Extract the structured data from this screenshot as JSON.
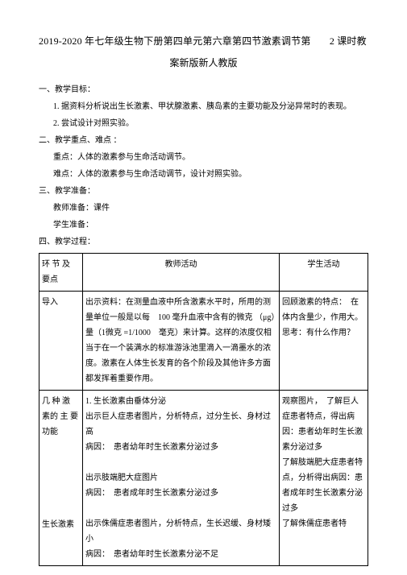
{
  "title": {
    "line1_left": "2019-2020 年七年级生物下册第四单元第六章第四节激素调节第",
    "line1_right": "2 课时教",
    "line2": "案新版新人教版"
  },
  "sections": {
    "s1_head": "一、教学目标：",
    "s1_item1": "1. 据资料分析说出生长激素、甲状腺激素、胰岛素的主要功能及分泌异常时的表现。",
    "s1_item2": "2. 尝试设计对照实验。",
    "s2_head": "二、教学重点、难点 ：",
    "s2_item1": "重点：人体的激素参与生命活动调节。",
    "s2_item2": "难点：人体的激素参与生命活动调节，设计对照实验。",
    "s3_head": "三、教学准备：",
    "s3_item1": "教师准备：课件",
    "s3_item2": "学生准备：",
    "s4_head": "四、教学过程："
  },
  "table": {
    "header": {
      "c1": "环 节 及 要点",
      "c2": "教师活动",
      "c3": "学生活动"
    },
    "row1": {
      "c1": "导入",
      "c2": "出示资料：在测量血液中所含激素水平时，所用的测量单位一般是以每　100 毫升血液中含有的微克 （μg）量（1微克 =1/1000　毫克）来计算。这样的浓度仅相当于在一个装满水的标准游泳池里滴入一滴墨水的浓度。激素在人体生长发育的各个阶段及其他许多方面都发挥着重要作用。",
      "c3": "回顾激素的特点：　在体内含量少，作用大。\n思考：有什么作用？"
    },
    "row2": {
      "c1a": "几 种 激 素的 主 要 功能",
      "c1b": "生长激素",
      "c2": "1. 生长激素由垂体分泌\n出示巨人症患者图片，分析特点，过分生长、身材过高\n病因：　患者幼年时生长激素分泌过多\n\n出示肢端肥大症图片\n病因：　患者成年时生长激素分泌过多\n\n出示侏儒症患者图片，分析特点，生长迟缓、身材矮小\n病因：　患者幼年时生长激素分泌不足",
      "c3": "观察图片，　了解巨人症患者特点，得出病因：患者幼年时生长激素分泌过多\n了解肢端肥大症患者特点，分析得出病因：患者成年时生长激素分泌过多\n了解侏儒症患者特"
    }
  }
}
